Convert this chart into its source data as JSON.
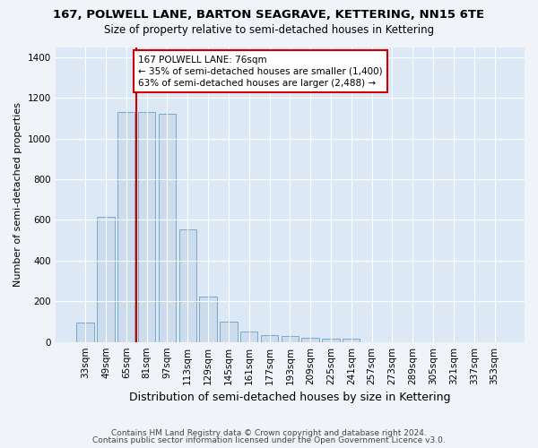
{
  "title": "167, POLWELL LANE, BARTON SEAGRAVE, KETTERING, NN15 6TE",
  "subtitle": "Size of property relative to semi-detached houses in Kettering",
  "xlabel": "Distribution of semi-detached houses by size in Kettering",
  "ylabel": "Number of semi-detached properties",
  "categories": [
    "33sqm",
    "49sqm",
    "65sqm",
    "81sqm",
    "97sqm",
    "113sqm",
    "129sqm",
    "145sqm",
    "161sqm",
    "177sqm",
    "193sqm",
    "209sqm",
    "225sqm",
    "241sqm",
    "257sqm",
    "273sqm",
    "289sqm",
    "305sqm",
    "321sqm",
    "337sqm",
    "353sqm"
  ],
  "values": [
    97,
    617,
    1130,
    1130,
    1120,
    555,
    225,
    100,
    53,
    35,
    30,
    22,
    15,
    15,
    0,
    0,
    0,
    0,
    0,
    0,
    0
  ],
  "bar_color": "#ccdcec",
  "bar_edge_color": "#7aaac8",
  "vline_color": "#cc0000",
  "vline_x_index": 2.5,
  "annotation_text": "167 POLWELL LANE: 76sqm\n← 35% of semi-detached houses are smaller (1,400)\n63% of semi-detached houses are larger (2,488) →",
  "annotation_box_facecolor": "#ffffff",
  "annotation_box_edgecolor": "#cc0000",
  "ylim": [
    0,
    1450
  ],
  "bg_color": "#dce8f5",
  "grid_color": "#ffffff",
  "fig_facecolor": "#f0f4f8",
  "footnote1": "Contains HM Land Registry data © Crown copyright and database right 2024.",
  "footnote2": "Contains public sector information licensed under the Open Government Licence v3.0.",
  "title_fontsize": 9.5,
  "subtitle_fontsize": 8.5,
  "xlabel_fontsize": 9,
  "ylabel_fontsize": 8,
  "tick_fontsize": 7.5,
  "annotation_fontsize": 7.5,
  "footnote_fontsize": 6.5
}
